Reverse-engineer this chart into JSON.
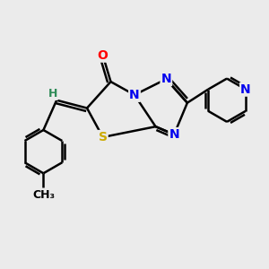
{
  "bg_color": "#ebebeb",
  "atom_colors": {
    "C": "#000000",
    "N": "#0000ee",
    "O": "#ff0000",
    "S": "#ccaa00",
    "H": "#2e8b57"
  },
  "bond_color": "#000000",
  "bond_width": 1.8,
  "font_size": 10,
  "fig_size": [
    3.0,
    3.0
  ],
  "dpi": 100
}
